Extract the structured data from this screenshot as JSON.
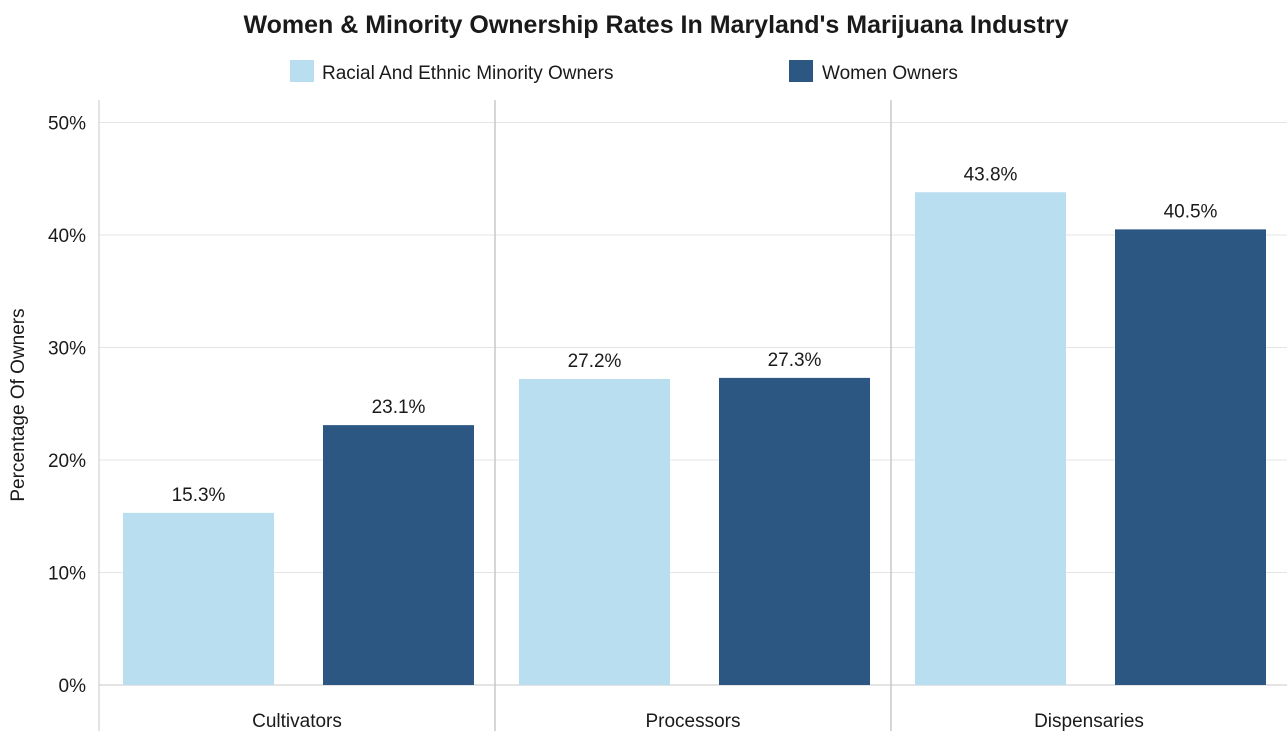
{
  "chart_data": {
    "type": "bar",
    "title": "Women & Minority Ownership Rates In Maryland's Marijuana Industry",
    "xlabel": "",
    "ylabel": "Percentage Of Owners",
    "categories": [
      "Cultivators",
      "Processors",
      "Dispensaries"
    ],
    "series": [
      {
        "name": "Racial And Ethnic Minority Owners",
        "color": "#b9def0",
        "values": [
          15.3,
          27.2,
          43.8
        ],
        "labels": [
          "15.3%",
          "27.2%",
          "43.8%"
        ]
      },
      {
        "name": "Women Owners",
        "color": "#2c5783",
        "values": [
          23.1,
          27.3,
          40.5
        ],
        "labels": [
          "23.1%",
          "27.3%",
          "40.5%"
        ]
      }
    ],
    "ylim": [
      0,
      52
    ],
    "yticks": [
      0,
      10,
      20,
      30,
      40,
      50
    ],
    "ytick_labels": [
      "0%",
      "10%",
      "20%",
      "30%",
      "40%",
      "50%"
    ],
    "grid": true,
    "legend_position": "top"
  }
}
